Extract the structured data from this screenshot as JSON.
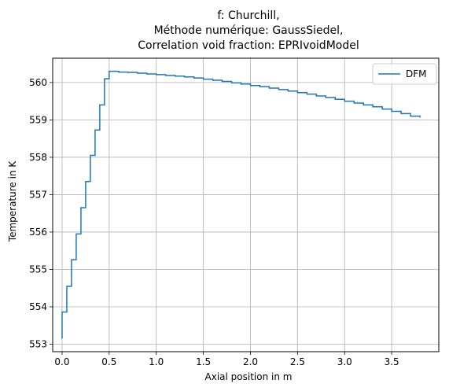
{
  "chart_data": {
    "type": "line",
    "title_lines": [
      "f: Churchill,",
      "Méthode numérique: GaussSiedel,",
      "Correlation void fraction: EPRIvoidModel"
    ],
    "xlabel": "Axial position in m",
    "ylabel": "Temperature in K",
    "xlim": [
      -0.1,
      4.0
    ],
    "ylim": [
      552.8,
      560.65
    ],
    "xticks": [
      0.0,
      0.5,
      1.0,
      1.5,
      2.0,
      2.5,
      3.0,
      3.5
    ],
    "xtick_labels": [
      "0.0",
      "0.5",
      "1.0",
      "1.5",
      "2.0",
      "2.5",
      "3.0",
      "3.5"
    ],
    "yticks": [
      553,
      554,
      555,
      556,
      557,
      558,
      559,
      560
    ],
    "ytick_labels": [
      "553",
      "554",
      "555",
      "556",
      "557",
      "558",
      "559",
      "560"
    ],
    "grid": true,
    "legend_position": "upper-right",
    "step_style": "post",
    "line_color": "#1f77b4",
    "series": [
      {
        "name": "DFM",
        "x": [
          0.0,
          0.0,
          0.05,
          0.1,
          0.15,
          0.2,
          0.25,
          0.3,
          0.35,
          0.4,
          0.45,
          0.5,
          0.6,
          0.7,
          0.8,
          0.9,
          1.0,
          1.1,
          1.2,
          1.3,
          1.4,
          1.5,
          1.6,
          1.7,
          1.8,
          1.9,
          2.0,
          2.1,
          2.2,
          2.3,
          2.4,
          2.5,
          2.6,
          2.7,
          2.8,
          2.9,
          3.0,
          3.1,
          3.2,
          3.3,
          3.4,
          3.5,
          3.6,
          3.7,
          3.8
        ],
        "y": [
          553.15,
          553.86,
          554.55,
          555.26,
          555.95,
          556.65,
          557.35,
          558.05,
          558.73,
          559.4,
          560.1,
          560.3,
          560.28,
          560.27,
          560.25,
          560.23,
          560.21,
          560.19,
          560.17,
          560.15,
          560.12,
          560.09,
          560.06,
          560.03,
          559.99,
          559.96,
          559.92,
          559.89,
          559.85,
          559.81,
          559.77,
          559.73,
          559.69,
          559.64,
          559.6,
          559.55,
          559.5,
          559.45,
          559.4,
          559.35,
          559.29,
          559.23,
          559.17,
          559.1,
          559.06
        ]
      }
    ]
  }
}
